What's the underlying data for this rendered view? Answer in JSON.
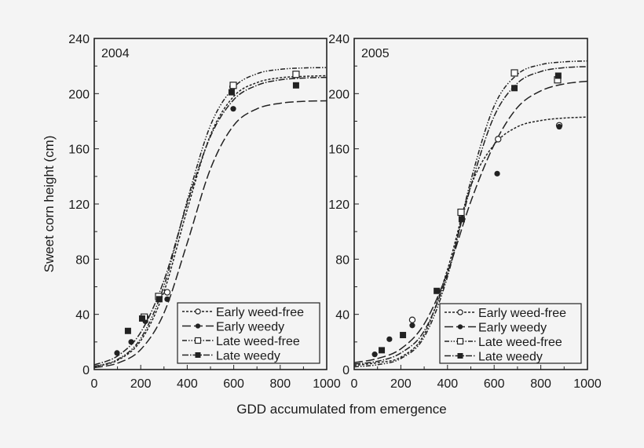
{
  "chart_data": [
    {
      "type": "line",
      "title": "2004",
      "xlabel": "GDD accumulated from emergence",
      "ylabel": "Sweet corn height (cm)",
      "xlim": [
        0,
        1000
      ],
      "ylim": [
        0,
        240
      ],
      "xticks": [
        0,
        200,
        400,
        600,
        800,
        1000
      ],
      "yticks": [
        0,
        40,
        80,
        120,
        160,
        200,
        240
      ],
      "grid": false,
      "legend": "bottom-right",
      "series": [
        {
          "name": "Early weed-free",
          "marker": "open-circle",
          "line": "short-dash",
          "points": [
            [
              220,
              38
            ],
            [
              314,
              56
            ],
            [
              595,
              205
            ]
          ],
          "curve_x": [
            0,
            100,
            200,
            300,
            400,
            500,
            600,
            700,
            800,
            900,
            1000
          ],
          "curve_y": [
            2.1,
            6.7,
            20.9,
            56.5,
            116,
            170,
            198,
            208,
            211.5,
            212.5,
            213
          ]
        },
        {
          "name": "Early weedy",
          "marker": "filled-circle",
          "line": "long-dash",
          "points": [
            [
              98,
              12
            ],
            [
              159,
              20
            ],
            [
              220,
              35
            ],
            [
              314,
              51
            ],
            [
              598,
              189
            ]
          ],
          "curve_x": [
            0,
            100,
            200,
            300,
            400,
            500,
            600,
            700,
            800,
            900,
            1000
          ],
          "curve_y": [
            1.4,
            4.6,
            14.5,
            41,
            91.7,
            145.5,
            177,
            189,
            193,
            194.4,
            194.8
          ]
        },
        {
          "name": "Late weed-free",
          "marker": "open-square",
          "line": "dash-dot-dot",
          "points": [
            [
              215,
              38
            ],
            [
              277,
              53
            ],
            [
              598,
              206
            ],
            [
              868,
              214
            ]
          ],
          "curve_x": [
            0,
            100,
            200,
            300,
            400,
            500,
            600,
            700,
            800,
            900,
            1000
          ],
          "curve_y": [
            2.3,
            7.3,
            22.6,
            60.6,
            122.5,
            177,
            204.4,
            214.4,
            217.6,
            218.6,
            218.9
          ]
        },
        {
          "name": "Late weedy",
          "marker": "filled-square",
          "line": "dash-dot",
          "points": [
            [
              145,
              28
            ],
            [
              206,
              37
            ],
            [
              280,
              51
            ],
            [
              591,
              201
            ],
            [
              868,
              206
            ]
          ],
          "curve_x": [
            0,
            100,
            200,
            300,
            400,
            500,
            600,
            700,
            800,
            900,
            1000
          ],
          "curve_y": [
            3.4,
            9.8,
            27,
            64.6,
            120.5,
            169,
            195.6,
            206,
            210,
            211.3,
            211.8
          ]
        }
      ]
    },
    {
      "type": "line",
      "title": "2005",
      "xlabel": "GDD accumulated from emergence",
      "ylabel": "Sweet corn height (cm)",
      "xlim": [
        0,
        1000
      ],
      "ylim": [
        0,
        240
      ],
      "xticks": [
        0,
        200,
        400,
        600,
        800,
        1000
      ],
      "yticks": [
        0,
        40,
        80,
        120,
        160,
        200,
        240
      ],
      "grid": false,
      "legend": "bottom-right",
      "series": [
        {
          "name": "Early weed-free",
          "marker": "open-circle",
          "line": "short-dash",
          "points": [
            [
              249,
              36
            ],
            [
              617,
              167
            ],
            [
              879,
              177
            ]
          ],
          "curve_x": [
            0,
            100,
            200,
            300,
            400,
            500,
            600,
            700,
            800,
            900,
            1000
          ],
          "curve_y": [
            3,
            5,
            9,
            25.5,
            72.6,
            133,
            163,
            176,
            180.5,
            182.3,
            183
          ]
        },
        {
          "name": "Early weedy",
          "marker": "filled-circle",
          "line": "long-dash",
          "points": [
            [
              88,
              11
            ],
            [
              151,
              22
            ],
            [
              249,
              32
            ],
            [
              613,
              142
            ],
            [
              879,
              176
            ]
          ],
          "curve_x": [
            0,
            100,
            200,
            300,
            400,
            500,
            600,
            700,
            800,
            900,
            1000
          ],
          "curve_y": [
            5,
            8,
            15,
            33,
            70.4,
            121.8,
            163,
            190,
            202,
            207,
            209
          ]
        },
        {
          "name": "Late weed-free",
          "marker": "open-square",
          "line": "dash-dot-dot",
          "points": [
            [
              458,
              114
            ],
            [
              687,
              215
            ],
            [
              872,
              210
            ]
          ],
          "curve_x": [
            0,
            100,
            200,
            300,
            400,
            500,
            600,
            700,
            800,
            900,
            1000
          ],
          "curve_y": [
            2,
            3.5,
            8,
            23.5,
            67.3,
            137,
            191,
            214,
            221,
            223,
            223.7
          ]
        },
        {
          "name": "Late weedy",
          "marker": "filled-square",
          "line": "dash-dot",
          "points": [
            [
              118,
              14
            ],
            [
              209,
              25
            ],
            [
              354,
              57
            ],
            [
              461,
              109
            ],
            [
              687,
              204
            ],
            [
              875,
              213
            ]
          ],
          "curve_x": [
            0,
            100,
            200,
            300,
            400,
            500,
            600,
            700,
            800,
            900,
            1000
          ],
          "curve_y": [
            4,
            6,
            12,
            28,
            69.2,
            132.8,
            183.6,
            207.6,
            216,
            218.8,
            219.6
          ]
        }
      ]
    }
  ]
}
